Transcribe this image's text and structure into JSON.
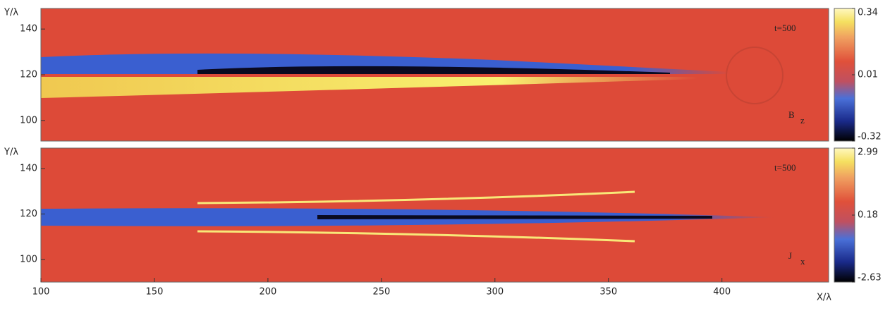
{
  "chart_data": [
    {
      "type": "heatmap",
      "annotation": "t=500",
      "field_label": "B",
      "field_subscript": "z",
      "ylabel": "Y/λ",
      "xlim": [
        100,
        447
      ],
      "ylim": [
        91,
        149
      ],
      "yticks": [
        100,
        120,
        140
      ],
      "clim": [
        -0.32,
        0.34
      ],
      "cticks": [
        -0.32,
        0.01,
        0.34
      ]
    },
    {
      "type": "heatmap",
      "annotation": "t=500",
      "field_label": "J",
      "field_subscript": "x",
      "ylabel": "Y/λ",
      "xlabel": "X/λ",
      "xlim": [
        100,
        447
      ],
      "ylim": [
        90,
        149
      ],
      "xticks": [
        100,
        150,
        200,
        250,
        300,
        350,
        400
      ],
      "yticks": [
        100,
        120,
        140
      ],
      "clim": [
        -2.63,
        2.99
      ],
      "cticks": [
        -2.63,
        0.18,
        2.99
      ]
    }
  ]
}
